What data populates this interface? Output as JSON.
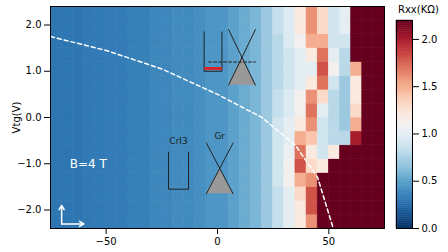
{
  "chart_data": {
    "type": "heatmap",
    "y_label": "Vtg(V)",
    "xlim": [
      -75,
      75
    ],
    "ylim": [
      -2.4,
      2.4
    ],
    "xticks": [
      -50,
      0,
      50
    ],
    "yticks": [
      -2,
      -1,
      0,
      1,
      2
    ],
    "cells": {
      "x_edges": [
        -75,
        -70,
        -65,
        -60,
        -55,
        -50,
        -45,
        -40,
        -35,
        -30,
        -25,
        -20,
        -15,
        -10,
        -5,
        0,
        5,
        10,
        15,
        20,
        25,
        30,
        35,
        40,
        45,
        50,
        55,
        60,
        65,
        70,
        75
      ],
      "y_edges": [
        -2.4,
        -2.1,
        -1.8,
        -1.5,
        -1.2,
        -0.9,
        -0.6,
        -0.3,
        0,
        0.3,
        0.6,
        0.9,
        1.2,
        1.5,
        1.8,
        2.1,
        2.4
      ],
      "values": [
        [
          0.3,
          0.3,
          0.3,
          0.32,
          0.32,
          0.33,
          0.33,
          0.35,
          0.35,
          0.38,
          0.38,
          0.4,
          0.4,
          0.42,
          0.45,
          0.45,
          0.5,
          0.55,
          0.6,
          0.7,
          0.85,
          1.0,
          1.2,
          1.6,
          2.3,
          2.3,
          2.3,
          2.3,
          2.3,
          2.3
        ],
        [
          0.3,
          0.3,
          0.3,
          0.32,
          0.32,
          0.33,
          0.33,
          0.35,
          0.35,
          0.38,
          0.38,
          0.4,
          0.4,
          0.42,
          0.45,
          0.45,
          0.5,
          0.55,
          0.6,
          0.7,
          0.85,
          1.0,
          1.2,
          1.8,
          2.3,
          2.3,
          2.3,
          2.3,
          2.3,
          2.3
        ],
        [
          0.3,
          0.3,
          0.3,
          0.32,
          0.32,
          0.33,
          0.33,
          0.35,
          0.35,
          0.38,
          0.38,
          0.4,
          0.4,
          0.42,
          0.45,
          0.45,
          0.5,
          0.55,
          0.6,
          0.7,
          0.85,
          1.0,
          1.3,
          1.8,
          2.3,
          2.3,
          2.3,
          2.3,
          2.3,
          2.3
        ],
        [
          0.3,
          0.3,
          0.3,
          0.32,
          0.32,
          0.33,
          0.33,
          0.35,
          0.35,
          0.38,
          0.38,
          0.4,
          0.4,
          0.42,
          0.45,
          0.45,
          0.5,
          0.55,
          0.6,
          0.7,
          0.9,
          1.1,
          1.5,
          1.6,
          2.3,
          2.3,
          2.3,
          2.3,
          2.3,
          2.3
        ],
        [
          0.3,
          0.3,
          0.3,
          0.32,
          0.32,
          0.33,
          0.33,
          0.35,
          0.35,
          0.38,
          0.38,
          0.4,
          0.4,
          0.42,
          0.45,
          0.45,
          0.5,
          0.55,
          0.6,
          0.7,
          0.9,
          1.1,
          1.8,
          1.3,
          1.2,
          2.3,
          2.3,
          2.3,
          2.3,
          2.3
        ],
        [
          0.3,
          0.3,
          0.3,
          0.32,
          0.32,
          0.33,
          0.33,
          0.35,
          0.35,
          0.38,
          0.38,
          0.4,
          0.4,
          0.42,
          0.45,
          0.45,
          0.5,
          0.55,
          0.6,
          0.7,
          0.9,
          1.05,
          1.7,
          1.2,
          0.9,
          1.2,
          2.2,
          2.3,
          2.3,
          2.3
        ],
        [
          0.3,
          0.3,
          0.3,
          0.32,
          0.32,
          0.33,
          0.33,
          0.35,
          0.35,
          0.38,
          0.38,
          0.4,
          0.4,
          0.42,
          0.45,
          0.45,
          0.5,
          0.55,
          0.6,
          0.7,
          0.9,
          1.0,
          1.5,
          1.4,
          0.9,
          0.8,
          0.8,
          2.0,
          2.3,
          2.3
        ],
        [
          0.3,
          0.3,
          0.3,
          0.32,
          0.32,
          0.33,
          0.33,
          0.35,
          0.35,
          0.38,
          0.38,
          0.4,
          0.4,
          0.42,
          0.45,
          0.45,
          0.5,
          0.55,
          0.6,
          0.7,
          0.9,
          1.0,
          1.2,
          1.6,
          0.9,
          0.8,
          0.7,
          1.5,
          2.3,
          2.3
        ],
        [
          0.3,
          0.3,
          0.3,
          0.32,
          0.32,
          0.33,
          0.33,
          0.35,
          0.35,
          0.38,
          0.38,
          0.4,
          0.4,
          0.42,
          0.45,
          0.45,
          0.5,
          0.55,
          0.6,
          0.7,
          0.85,
          0.95,
          1.1,
          1.7,
          1.0,
          0.8,
          0.7,
          1.3,
          2.3,
          2.3
        ],
        [
          0.3,
          0.3,
          0.3,
          0.32,
          0.32,
          0.33,
          0.33,
          0.35,
          0.35,
          0.38,
          0.38,
          0.4,
          0.4,
          0.42,
          0.45,
          0.45,
          0.5,
          0.55,
          0.6,
          0.7,
          0.85,
          0.95,
          1.1,
          1.6,
          1.3,
          0.8,
          0.7,
          1.2,
          2.3,
          2.3
        ],
        [
          0.3,
          0.3,
          0.3,
          0.32,
          0.32,
          0.33,
          0.33,
          0.35,
          0.35,
          0.38,
          0.38,
          0.4,
          0.4,
          0.42,
          0.45,
          0.45,
          0.5,
          0.55,
          0.6,
          0.7,
          0.8,
          0.9,
          1.0,
          1.2,
          1.7,
          0.9,
          0.7,
          1.2,
          2.3,
          2.3
        ],
        [
          0.3,
          0.3,
          0.3,
          0.32,
          0.32,
          0.33,
          0.33,
          0.35,
          0.35,
          0.38,
          0.38,
          0.4,
          0.4,
          0.42,
          0.45,
          0.45,
          0.5,
          0.55,
          0.6,
          0.7,
          0.8,
          0.9,
          1.0,
          1.0,
          1.8,
          1.1,
          0.8,
          1.5,
          2.3,
          2.3
        ],
        [
          0.3,
          0.3,
          0.3,
          0.32,
          0.32,
          0.33,
          0.33,
          0.35,
          0.35,
          0.38,
          0.38,
          0.4,
          0.4,
          0.42,
          0.45,
          0.45,
          0.5,
          0.55,
          0.6,
          0.7,
          0.8,
          0.9,
          1.0,
          1.2,
          1.7,
          1.0,
          0.8,
          2.2,
          2.3,
          2.3
        ],
        [
          0.3,
          0.3,
          0.3,
          0.32,
          0.32,
          0.33,
          0.33,
          0.35,
          0.35,
          0.38,
          0.38,
          0.4,
          0.4,
          0.42,
          0.45,
          0.45,
          0.5,
          0.55,
          0.6,
          0.7,
          0.8,
          0.95,
          1.1,
          1.5,
          1.5,
          0.9,
          0.9,
          2.3,
          2.3,
          2.3
        ],
        [
          0.3,
          0.3,
          0.3,
          0.32,
          0.32,
          0.33,
          0.33,
          0.35,
          0.35,
          0.38,
          0.38,
          0.4,
          0.4,
          0.42,
          0.45,
          0.45,
          0.5,
          0.55,
          0.6,
          0.7,
          0.85,
          0.95,
          1.2,
          1.6,
          1.3,
          0.9,
          1.0,
          2.3,
          2.3,
          2.3
        ],
        [
          0.3,
          0.3,
          0.3,
          0.32,
          0.32,
          0.33,
          0.33,
          0.35,
          0.35,
          0.38,
          0.38,
          0.4,
          0.4,
          0.42,
          0.45,
          0.45,
          0.5,
          0.55,
          0.6,
          0.7,
          0.85,
          0.95,
          1.2,
          1.6,
          1.3,
          0.9,
          1.0,
          2.3,
          2.3,
          2.3
        ]
      ]
    },
    "colorbar": {
      "label": "Rxx(KΩ)",
      "range": [
        0,
        2.2
      ],
      "ticks": [
        {
          "value": 0,
          "label": "0.0"
        },
        {
          "value": 0.5,
          "label": "0.5"
        },
        {
          "value": 1,
          "label": "1.0"
        },
        {
          "value": 1.5,
          "label": "1.5"
        },
        {
          "value": 2,
          "label": "2.0"
        }
      ]
    },
    "dashed_line": {
      "x": [
        -75,
        -50,
        -25,
        0,
        20,
        35,
        45,
        52
      ],
      "y": [
        1.75,
        1.45,
        1.05,
        0.5,
        0.0,
        -0.6,
        -1.3,
        -2.4
      ]
    },
    "annotations": [
      "B=4 T",
      "CrI3",
      "Gr"
    ]
  }
}
